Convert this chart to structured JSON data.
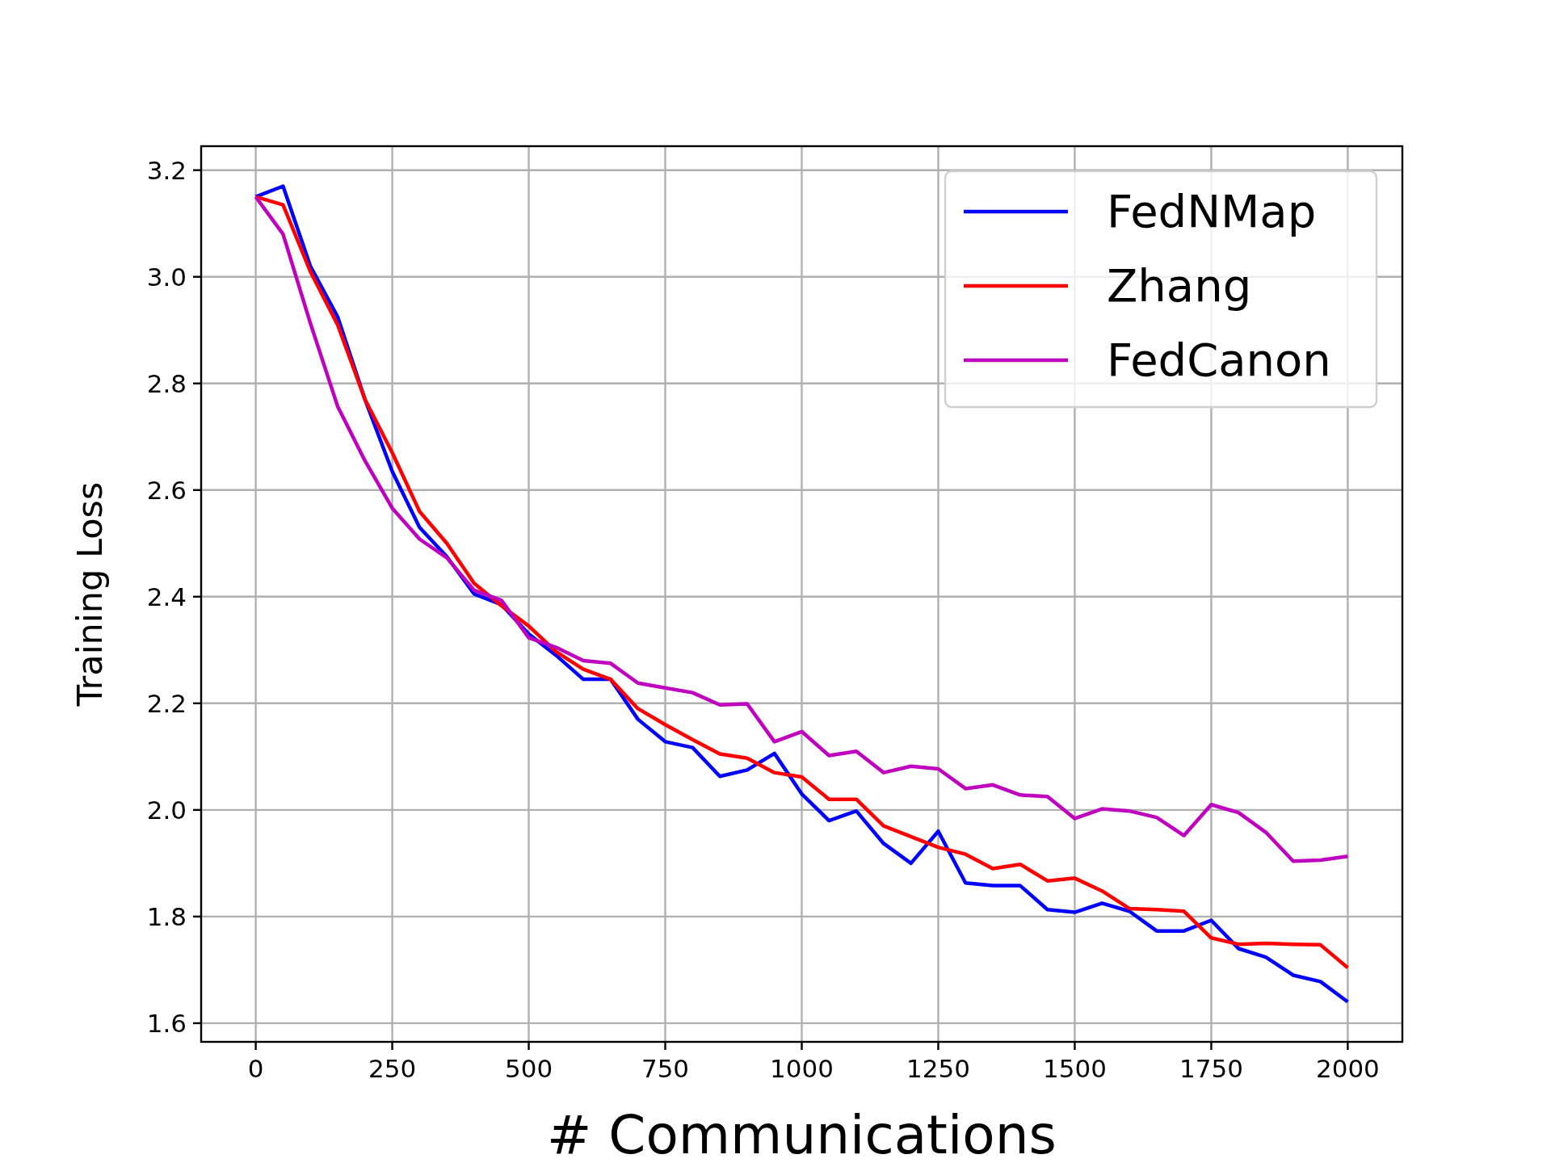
{
  "chart_data": {
    "type": "line",
    "xlabel": "# Communications",
    "ylabel": "Training Loss",
    "x": [
      0,
      50,
      100,
      150,
      200,
      250,
      300,
      350,
      400,
      450,
      500,
      550,
      600,
      650,
      700,
      750,
      800,
      850,
      900,
      950,
      1000,
      1050,
      1100,
      1150,
      1200,
      1250,
      1300,
      1350,
      1400,
      1450,
      1500,
      1550,
      1600,
      1650,
      1700,
      1750,
      1800,
      1850,
      1900,
      1950,
      2000
    ],
    "series": [
      {
        "name": "FedNMap",
        "color": "#0000ff",
        "values": [
          3.15,
          3.17,
          3.02,
          2.925,
          2.77,
          2.635,
          2.53,
          2.475,
          2.405,
          2.385,
          2.33,
          2.29,
          2.245,
          2.245,
          2.17,
          2.128,
          2.117,
          2.063,
          2.075,
          2.106,
          2.03,
          1.98,
          1.998,
          1.937,
          1.9,
          1.96,
          1.863,
          1.858,
          1.858,
          1.813,
          1.808,
          1.825,
          1.81,
          1.773,
          1.773,
          1.793,
          1.74,
          1.724,
          1.69,
          1.678,
          1.64
        ]
      },
      {
        "name": "Zhang",
        "color": "#ff0000",
        "values": [
          3.15,
          3.135,
          3.01,
          2.91,
          2.77,
          2.67,
          2.56,
          2.5,
          2.425,
          2.383,
          2.345,
          2.297,
          2.264,
          2.245,
          2.19,
          2.16,
          2.132,
          2.105,
          2.097,
          2.07,
          2.062,
          2.02,
          2.02,
          1.97,
          1.95,
          1.93,
          1.917,
          1.89,
          1.898,
          1.867,
          1.872,
          1.848,
          1.815,
          1.813,
          1.81,
          1.76,
          1.748,
          1.75,
          1.748,
          1.747,
          1.704
        ]
      },
      {
        "name": "FedCanon",
        "color": "#bf00bf",
        "values": [
          3.15,
          3.08,
          2.913,
          2.757,
          2.655,
          2.566,
          2.508,
          2.473,
          2.412,
          2.393,
          2.323,
          2.305,
          2.28,
          2.275,
          2.238,
          2.229,
          2.22,
          2.197,
          2.199,
          2.128,
          2.147,
          2.102,
          2.11,
          2.07,
          2.082,
          2.077,
          2.04,
          2.047,
          2.028,
          2.025,
          1.984,
          2.002,
          1.998,
          1.986,
          1.952,
          2.01,
          1.995,
          1.958,
          1.904,
          1.906,
          1.913
        ]
      }
    ],
    "xlim": [
      -100,
      2100
    ],
    "xticks": [
      0,
      250,
      500,
      750,
      1000,
      1250,
      1500,
      1750,
      2000
    ],
    "ylim": [
      1.565,
      3.245
    ],
    "yticks": [
      {
        "value": 1.6,
        "label": "1.6"
      },
      {
        "value": 1.8,
        "label": "1.8"
      },
      {
        "value": 2.0,
        "label": "2.0"
      },
      {
        "value": 2.2,
        "label": "2.2"
      },
      {
        "value": 2.4,
        "label": "2.4"
      },
      {
        "value": 2.6,
        "label": "2.6"
      },
      {
        "value": 2.8,
        "label": "2.8"
      },
      {
        "value": 3.0,
        "label": "3.0"
      },
      {
        "value": 3.2,
        "label": "3.2"
      }
    ],
    "grid": true,
    "legend": "top right",
    "marker": "none",
    "line_style": "solid"
  }
}
